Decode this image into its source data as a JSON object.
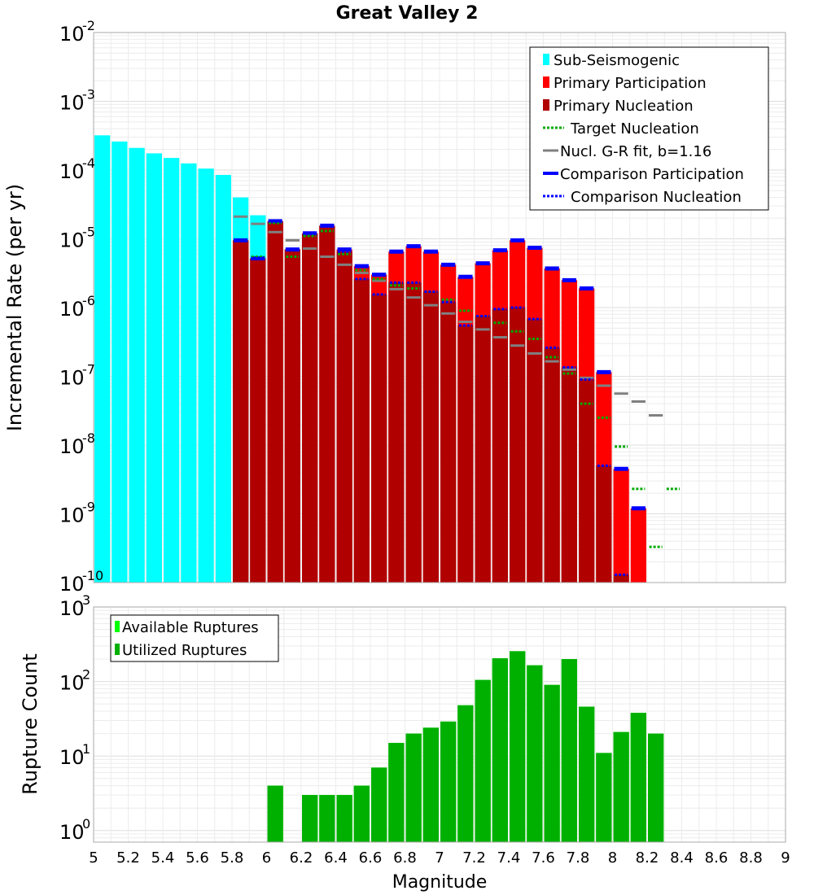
{
  "chart_data": [
    {
      "type": "bar",
      "title": "Great Valley 2",
      "xlabel": "",
      "ylabel": "Incremental Rate (per yr)",
      "yscale": "log",
      "xlim": [
        5,
        9
      ],
      "ylim": [
        1e-10,
        0.01
      ],
      "bin_width": 0.1,
      "y_tick_exponents": [
        "-10",
        "-9",
        "-8",
        "-7",
        "-6",
        "-5",
        "-4",
        "-3",
        "-2"
      ],
      "y_tick_base": "10",
      "legend": {
        "placement": "top-right",
        "entries": [
          "Sub-Seismogenic",
          "Primary Participation",
          "Primary Nucleation",
          "Target Nucleation",
          "Nucl. G-R fit, b=1.16",
          "Comparison Participation",
          "Comparison Nucleation"
        ]
      },
      "series": [
        {
          "name": "Sub-Seismogenic",
          "color": "#00ffff",
          "x": [
            5.05,
            5.15,
            5.25,
            5.35,
            5.45,
            5.55,
            5.65,
            5.75,
            5.85,
            5.95
          ],
          "values": [
            0.00032,
            0.00026,
            0.00021,
            0.000175,
            0.00015,
            0.000125,
            0.000105,
            8.5e-05,
            4e-05,
            2.2e-05
          ]
        },
        {
          "name": "Primary Participation",
          "color": "#ff0000",
          "x": [
            5.85,
            5.95,
            6.05,
            6.15,
            6.25,
            6.35,
            6.45,
            6.55,
            6.65,
            6.75,
            6.85,
            6.95,
            7.05,
            7.15,
            7.25,
            7.35,
            7.45,
            7.55,
            7.65,
            7.75,
            7.85,
            7.95,
            8.05,
            8.15
          ],
          "values": [
            9.5e-06,
            5.2e-06,
            1.8e-05,
            7e-06,
            1.2e-05,
            1.55e-05,
            7e-06,
            4e-06,
            3e-06,
            6.5e-06,
            7.8e-06,
            6.5e-06,
            4.2e-06,
            2.8e-06,
            4.4e-06,
            6.8e-06,
            9.5e-06,
            7.4e-06,
            3.7e-06,
            2.5e-06,
            1.9e-06,
            1.15e-07,
            4.5e-09,
            1.2e-09
          ]
        },
        {
          "name": "Primary Nucleation",
          "color": "#b00000",
          "x": [
            5.85,
            5.95,
            6.05,
            6.15,
            6.25,
            6.35,
            6.45,
            6.55,
            6.65,
            6.75,
            6.85,
            6.95,
            7.05,
            7.15,
            7.25,
            7.35,
            7.45,
            7.55,
            7.65,
            7.75,
            7.85,
            7.95,
            8.05
          ],
          "values": [
            9.5e-06,
            5.2e-06,
            1.8e-05,
            7e-06,
            1.2e-05,
            1.55e-05,
            6.5e-06,
            2.6e-06,
            1.55e-06,
            2.3e-06,
            2.3e-06,
            1.7e-06,
            1.2e-06,
            5.5e-07,
            7.5e-07,
            9.5e-07,
            1e-06,
            6.8e-07,
            2.6e-07,
            1.35e-07,
            9e-08,
            5e-09,
            1.3e-10
          ]
        },
        {
          "name": "Target Nucleation",
          "color": "#00aa00",
          "x": [
            5.85,
            5.95,
            6.05,
            6.15,
            6.25,
            6.35,
            6.45,
            6.55,
            6.65,
            6.75,
            6.85,
            6.95,
            7.05,
            7.15,
            7.25,
            7.35,
            7.45,
            7.55,
            7.65,
            7.75,
            7.85,
            7.95,
            8.05,
            8.15,
            8.25,
            8.35
          ],
          "values": [
            9.5e-06,
            5.5e-06,
            1.7e-05,
            5.5e-06,
            1.1e-05,
            1.3e-05,
            6e-06,
            3.5e-06,
            2.6e-06,
            2.1e-06,
            1.9e-06,
            1.7e-06,
            1.3e-06,
            9e-07,
            7.5e-07,
            6e-07,
            4.5e-07,
            3.5e-07,
            1.9e-07,
            1.1e-07,
            4e-08,
            2.5e-08,
            9.5e-09,
            2.3e-09,
            3.3e-10,
            2.3e-09
          ]
        },
        {
          "name": "Nucl. G-R fit, b=1.16",
          "color": "#808080",
          "x": [
            5.85,
            5.95,
            6.05,
            6.15,
            6.25,
            6.35,
            6.45,
            6.55,
            6.65,
            6.75,
            6.85,
            6.95,
            7.05,
            7.15,
            7.25,
            7.35,
            7.45,
            7.55,
            7.65,
            7.75,
            7.85,
            7.95,
            8.05,
            8.15,
            8.25
          ],
          "values": [
            2.1e-05,
            1.65e-05,
            1.25e-05,
            9.5e-06,
            7.2e-06,
            5.5e-06,
            4.2e-06,
            3.2e-06,
            2.45e-06,
            1.85e-06,
            1.4e-06,
            1.08e-06,
            8.2e-07,
            6.2e-07,
            4.8e-07,
            3.7e-07,
            2.8e-07,
            2.15e-07,
            1.65e-07,
            1.25e-07,
            9.5e-08,
            7.3e-08,
            5.6e-08,
            4.3e-08,
            2.7e-08
          ]
        },
        {
          "name": "Comparison Participation",
          "color": "#0000ff",
          "x": [
            5.85,
            5.95,
            6.05,
            6.15,
            6.25,
            6.35,
            6.45,
            6.55,
            6.65,
            6.75,
            6.85,
            6.95,
            7.05,
            7.15,
            7.25,
            7.35,
            7.45,
            7.55,
            7.65,
            7.75,
            7.85,
            7.95,
            8.05,
            8.15
          ],
          "values": [
            9.5e-06,
            5.2e-06,
            1.8e-05,
            7e-06,
            1.2e-05,
            1.55e-05,
            7e-06,
            4e-06,
            3e-06,
            6.5e-06,
            7.8e-06,
            6.5e-06,
            4.2e-06,
            2.8e-06,
            4.4e-06,
            6.8e-06,
            9.5e-06,
            7.4e-06,
            3.7e-06,
            2.5e-06,
            1.9e-06,
            1.15e-07,
            4.5e-09,
            1.2e-09
          ]
        },
        {
          "name": "Comparison Nucleation",
          "color": "#0000ff",
          "x": [
            5.85,
            5.95,
            6.05,
            6.15,
            6.25,
            6.35,
            6.45,
            6.55,
            6.65,
            6.75,
            6.85,
            6.95,
            7.05,
            7.15,
            7.25,
            7.35,
            7.45,
            7.55,
            7.65,
            7.75,
            7.85,
            7.95,
            8.05
          ],
          "values": [
            9.5e-06,
            5.2e-06,
            1.8e-05,
            7e-06,
            1.2e-05,
            1.55e-05,
            6.5e-06,
            2.6e-06,
            1.55e-06,
            2.3e-06,
            2.3e-06,
            1.7e-06,
            1.2e-06,
            5.5e-07,
            7.5e-07,
            9.5e-07,
            1e-06,
            6.8e-07,
            2.6e-07,
            1.35e-07,
            9e-08,
            5e-09,
            1.3e-10
          ]
        }
      ]
    },
    {
      "type": "bar",
      "title": "",
      "xlabel": "Magnitude",
      "ylabel": "Rupture Count",
      "yscale": "log",
      "xlim": [
        5,
        9
      ],
      "ylim": [
        0.7,
        1000
      ],
      "x_ticks": [
        "5",
        "5.2",
        "5.4",
        "5.6",
        "5.8",
        "6",
        "6.2",
        "6.4",
        "6.6",
        "6.8",
        "7",
        "7.2",
        "7.4",
        "7.6",
        "7.8",
        "8",
        "8.2",
        "8.4",
        "8.6",
        "8.8",
        "9"
      ],
      "y_tick_exponents": [
        "0",
        "1",
        "2",
        "3"
      ],
      "y_tick_base": "10",
      "legend": {
        "placement": "top-left",
        "entries": [
          "Available Ruptures",
          "Utilized Ruptures"
        ]
      },
      "series": [
        {
          "name": "Available Ruptures",
          "color": "#00ff00",
          "x": [
            6.05,
            6.25,
            6.35,
            6.45,
            6.55,
            6.65,
            6.75,
            6.85,
            6.95,
            7.05,
            7.15,
            7.25,
            7.35,
            7.45,
            7.55,
            7.65,
            7.75,
            7.85,
            7.95,
            8.05,
            8.15,
            8.25
          ],
          "values": [
            4,
            3,
            3,
            3,
            4,
            7,
            15,
            20,
            24,
            29,
            48,
            105,
            205,
            255,
            165,
            90,
            200,
            46,
            11,
            21,
            38,
            20
          ]
        },
        {
          "name": "Utilized Ruptures",
          "color": "#00b000",
          "x": [
            6.05,
            6.25,
            6.35,
            6.45,
            6.55,
            6.65,
            6.75,
            6.85,
            6.95,
            7.05,
            7.15,
            7.25,
            7.35,
            7.45,
            7.55,
            7.65,
            7.75,
            7.85,
            7.95,
            8.05,
            8.15,
            8.25
          ],
          "values": [
            4,
            3,
            3,
            3,
            4,
            7,
            15,
            20,
            24,
            29,
            48,
            105,
            205,
            255,
            165,
            90,
            200,
            46,
            11,
            21,
            38,
            20
          ]
        }
      ]
    }
  ]
}
